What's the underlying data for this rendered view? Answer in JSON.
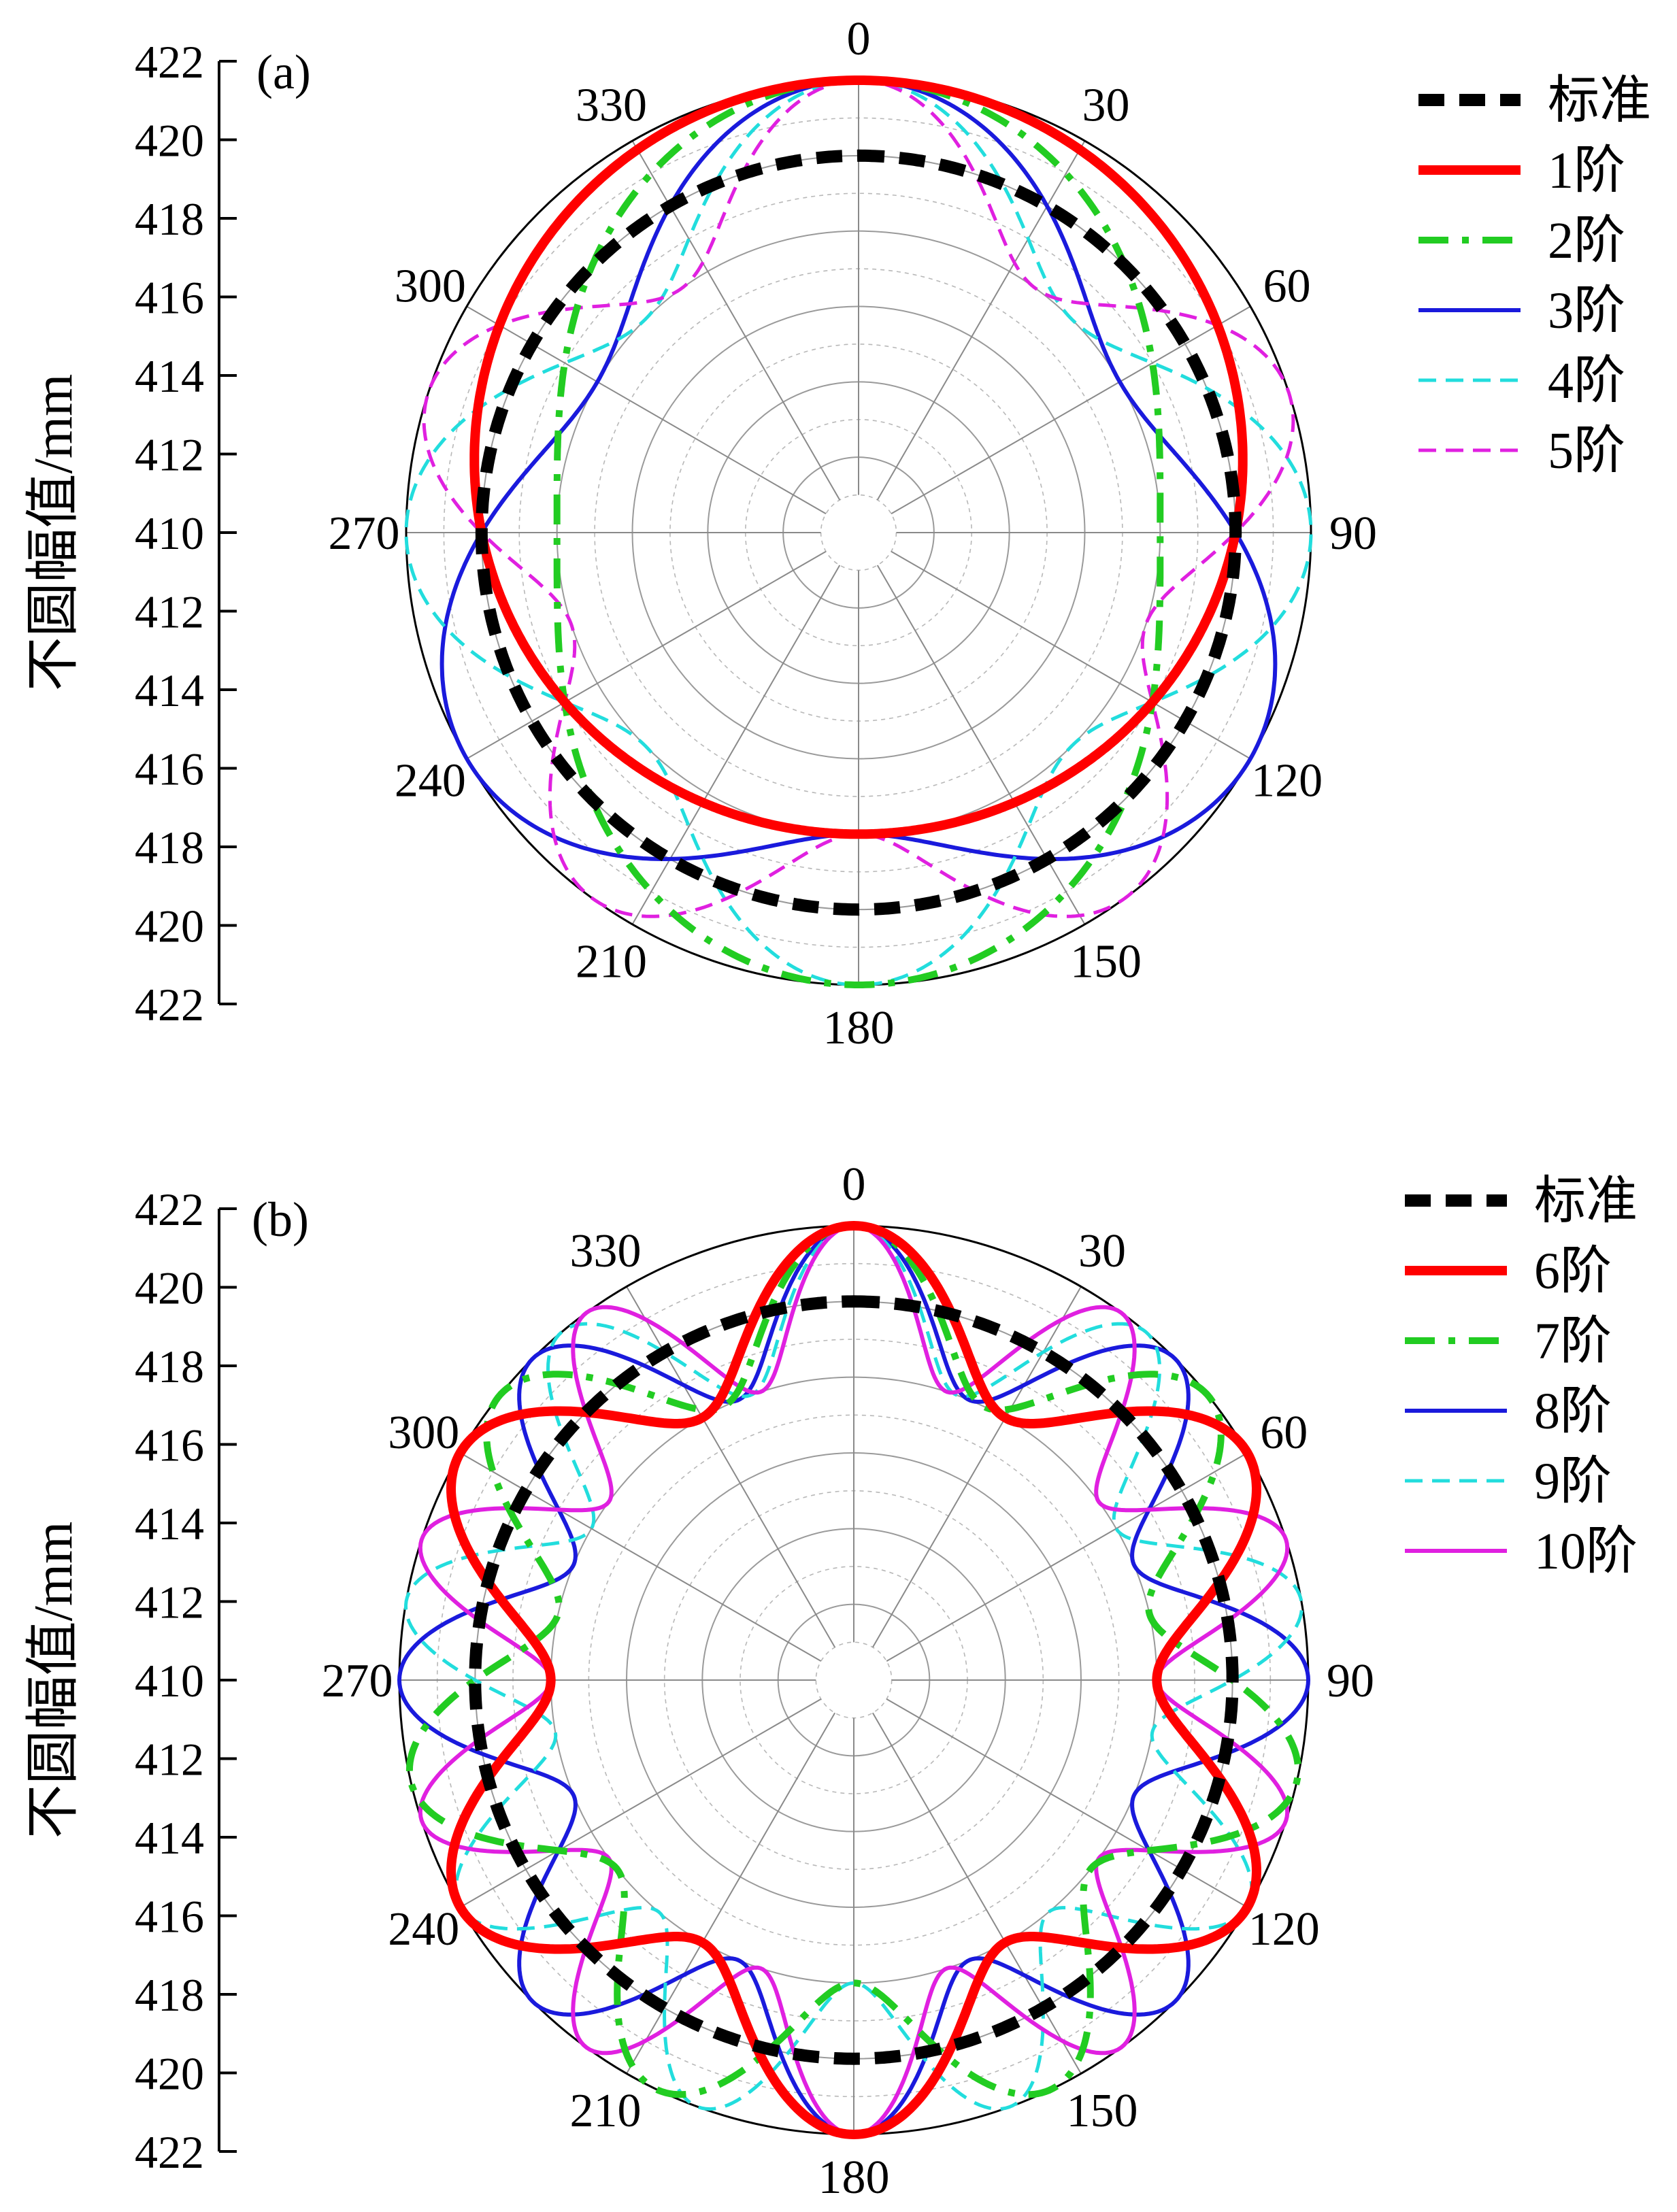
{
  "chart_data": [
    {
      "type": "polar_line",
      "panel_label": "(a)",
      "y_axis_label": "不圆幅值/mm",
      "r_axis_ticks": [
        "422",
        "420",
        "418",
        "416",
        "414",
        "412",
        "410",
        "412",
        "414",
        "416",
        "418",
        "420",
        "422"
      ],
      "angle_ticks": [
        "0",
        "30",
        "60",
        "90",
        "120",
        "150",
        "180",
        "210",
        "240",
        "270",
        "300",
        "330"
      ],
      "r_range": [
        410,
        422
      ],
      "baseline_radius": 420,
      "series": [
        {
          "name": "标准",
          "order": 0,
          "amplitude": 0,
          "color": "#000000",
          "style": "thick-dash"
        },
        {
          "name": "1阶",
          "order": 1,
          "amplitude": 2.0,
          "color": "#ff0000",
          "style": "thick-solid"
        },
        {
          "name": "2阶",
          "order": 2,
          "amplitude": 2.0,
          "color": "#22cc22",
          "style": "dash-dot"
        },
        {
          "name": "3阶",
          "order": 3,
          "amplitude": 2.0,
          "color": "#1a1adc",
          "style": "solid"
        },
        {
          "name": "4阶",
          "order": 4,
          "amplitude": 2.0,
          "color": "#22dddd",
          "style": "dash"
        },
        {
          "name": "5阶",
          "order": 5,
          "amplitude": 2.0,
          "color": "#e020e0",
          "style": "dash"
        }
      ]
    },
    {
      "type": "polar_line",
      "panel_label": "(b)",
      "y_axis_label": "不圆幅值/mm",
      "r_axis_ticks": [
        "422",
        "420",
        "418",
        "416",
        "414",
        "412",
        "410",
        "412",
        "414",
        "416",
        "418",
        "420",
        "422"
      ],
      "angle_ticks": [
        "0",
        "30",
        "60",
        "90",
        "120",
        "150",
        "180",
        "210",
        "240",
        "270",
        "300",
        "330"
      ],
      "r_range": [
        410,
        422
      ],
      "baseline_radius": 420,
      "series": [
        {
          "name": "标准",
          "order": 0,
          "amplitude": 0,
          "color": "#000000",
          "style": "thick-dash"
        },
        {
          "name": "6阶",
          "order": 6,
          "amplitude": 2.0,
          "color": "#ff0000",
          "style": "thick-solid"
        },
        {
          "name": "7阶",
          "order": 7,
          "amplitude": 2.0,
          "color": "#22cc22",
          "style": "dash-dot"
        },
        {
          "name": "8阶",
          "order": 8,
          "amplitude": 2.0,
          "color": "#1a1adc",
          "style": "solid"
        },
        {
          "name": "9阶",
          "order": 9,
          "amplitude": 2.0,
          "color": "#22dddd",
          "style": "dash"
        },
        {
          "name": "10阶",
          "order": 10,
          "amplitude": 2.0,
          "color": "#e020e0",
          "style": "solid"
        }
      ]
    }
  ]
}
